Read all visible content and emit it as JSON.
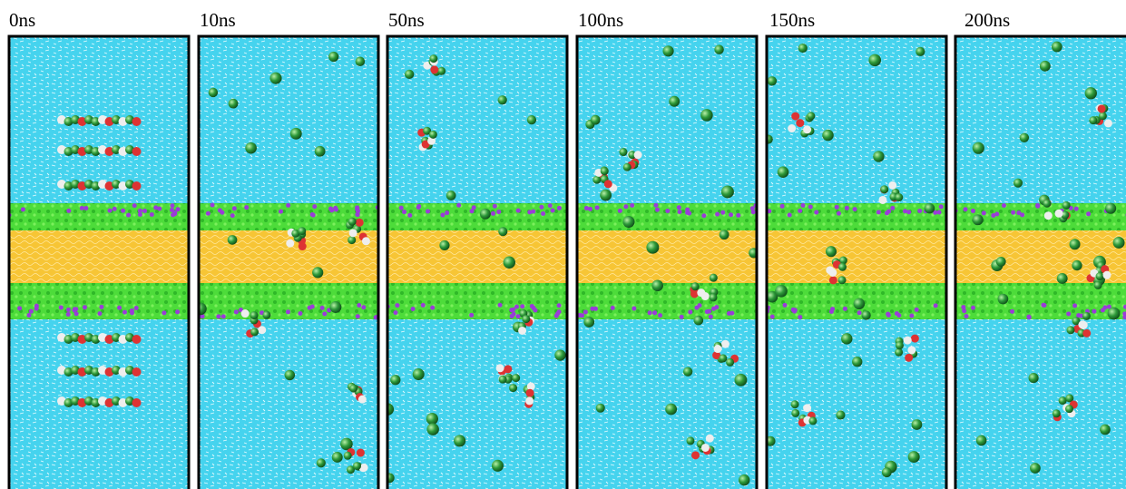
{
  "panels": [
    {
      "label": "0ns"
    },
    {
      "label": "10ns"
    },
    {
      "label": "50ns"
    },
    {
      "label": "100ns"
    },
    {
      "label": "150ns"
    },
    {
      "label": "200ns"
    }
  ]
}
